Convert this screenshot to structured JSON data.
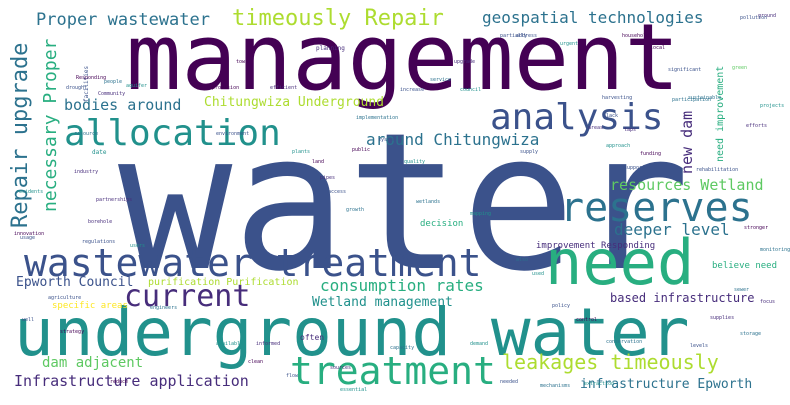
{
  "palette": {
    "dark_purple": "#440154",
    "indigo": "#472d7b",
    "slate_blue": "#3b528b",
    "steel": "#2c728e",
    "teal": "#21918c",
    "sea_green": "#28ae80",
    "green": "#5ec962",
    "lime": "#addc30",
    "yellow": "#fde725"
  },
  "words": [
    {
      "id": "management",
      "text": "management"
    },
    {
      "id": "water",
      "text": "water"
    },
    {
      "id": "underground-water",
      "text": "underground water"
    },
    {
      "id": "wastewater-treatment",
      "text": "wastewater treatment"
    },
    {
      "id": "need",
      "text": "need"
    },
    {
      "id": "treatment",
      "text": "treatment"
    },
    {
      "id": "allocation",
      "text": "allocation"
    },
    {
      "id": "analysis",
      "text": "analysis"
    },
    {
      "id": "reserves",
      "text": "reserves"
    },
    {
      "id": "current",
      "text": "current"
    },
    {
      "id": "timeously-repair",
      "text": "timeously Repair"
    },
    {
      "id": "proper-wastewater",
      "text": "Proper wastewater"
    },
    {
      "id": "geospatial-technologies",
      "text": "geospatial technologies"
    },
    {
      "id": "repair-upgrade",
      "text": "Repair upgrade"
    },
    {
      "id": "necessary-proper",
      "text": "necessary Proper"
    },
    {
      "id": "bodies-around",
      "text": "bodies around"
    },
    {
      "id": "chitungwiza-underground",
      "text": "Chitungwiza Underground"
    },
    {
      "id": "around-chitungwiza",
      "text": "around Chitungwiza"
    },
    {
      "id": "new-dam",
      "text": "new dam"
    },
    {
      "id": "need-improvement",
      "text": "need improvement"
    },
    {
      "id": "resources-wetland",
      "text": "resources Wetland"
    },
    {
      "id": "deeper-level",
      "text": "deeper level"
    },
    {
      "id": "consumption-rates",
      "text": "consumption rates"
    },
    {
      "id": "epworth-council",
      "text": "Epworth Council"
    },
    {
      "id": "purification-purification",
      "text": "purification Purification"
    },
    {
      "id": "wetland-management",
      "text": "Wetland management"
    },
    {
      "id": "based-infrastructure",
      "text": "based infrastructure"
    },
    {
      "id": "leakages-timeously",
      "text": "leakages timeously"
    },
    {
      "id": "dam-adjacent",
      "text": "dam adjacent"
    },
    {
      "id": "infrastructure-application",
      "text": "Infrastructure application"
    },
    {
      "id": "infrastructure-epworth",
      "text": "infrastructure Epworth"
    },
    {
      "id": "improvement-responding",
      "text": "improvement Responding"
    },
    {
      "id": "believe-need",
      "text": "believe need"
    },
    {
      "id": "specific-areas",
      "text": "specific areas"
    },
    {
      "id": "decision",
      "text": "decision"
    },
    {
      "id": "often",
      "text": "often"
    },
    {
      "id": "facilities",
      "text": "facilities"
    },
    {
      "id": "planning",
      "text": "planning"
    },
    {
      "id": "date",
      "text": "date"
    },
    {
      "id": "implementation",
      "text": "implementation"
    },
    {
      "id": "regulations",
      "text": "regulations"
    },
    {
      "id": "mechanisms",
      "text": "mechanisms"
    },
    {
      "id": "essential",
      "text": "essential"
    },
    {
      "id": "needed",
      "text": "needed"
    },
    {
      "id": "community",
      "text": "Community"
    },
    {
      "id": "partially",
      "text": "partially"
    },
    {
      "id": "households",
      "text": "households"
    },
    {
      "id": "significant",
      "text": "significant"
    },
    {
      "id": "participation",
      "text": "participation"
    },
    {
      "id": "projects",
      "text": "projects"
    },
    {
      "id": "efforts",
      "text": "efforts"
    },
    {
      "id": "rehabilitation",
      "text": "rehabilitation"
    },
    {
      "id": "stronger",
      "text": "stronger"
    },
    {
      "id": "informed",
      "text": "informed"
    },
    {
      "id": "sustainable",
      "text": "sustainable"
    },
    {
      "id": "system",
      "text": "system"
    },
    {
      "id": "quality",
      "text": "quality"
    },
    {
      "id": "public",
      "text": "public"
    },
    {
      "id": "supply",
      "text": "supply"
    },
    {
      "id": "industry",
      "text": "industry"
    },
    {
      "id": "growth",
      "text": "growth"
    },
    {
      "id": "address",
      "text": "address"
    },
    {
      "id": "urgent",
      "text": "urgent"
    },
    {
      "id": "local",
      "text": "local"
    },
    {
      "id": "ground",
      "text": "ground"
    },
    {
      "id": "green",
      "text": "green"
    },
    {
      "id": "pollution",
      "text": "pollution"
    },
    {
      "id": "monitoring",
      "text": "monitoring"
    },
    {
      "id": "responding",
      "text": "Responding"
    },
    {
      "id": "drought",
      "text": "drought"
    },
    {
      "id": "residents",
      "text": "residents"
    },
    {
      "id": "borehole",
      "text": "borehole"
    },
    {
      "id": "usage",
      "text": "usage"
    },
    {
      "id": "engineers",
      "text": "engineers"
    },
    {
      "id": "available",
      "text": "available"
    },
    {
      "id": "clean",
      "text": "clean"
    },
    {
      "id": "flow",
      "text": "flow"
    },
    {
      "id": "sources",
      "text": "sources"
    },
    {
      "id": "capacity",
      "text": "capacity"
    },
    {
      "id": "demand",
      "text": "demand"
    },
    {
      "id": "policy",
      "text": "policy"
    },
    {
      "id": "control",
      "text": "control"
    },
    {
      "id": "supplies",
      "text": "supplies"
    },
    {
      "id": "storage",
      "text": "storage"
    },
    {
      "id": "levels",
      "text": "levels"
    },
    {
      "id": "approach",
      "text": "approach"
    },
    {
      "id": "funding",
      "text": "funding"
    },
    {
      "id": "support",
      "text": "support"
    },
    {
      "id": "areas",
      "text": "areas"
    },
    {
      "id": "service",
      "text": "service"
    },
    {
      "id": "council",
      "text": "council"
    },
    {
      "id": "increase",
      "text": "increase"
    },
    {
      "id": "provision",
      "text": "provision"
    },
    {
      "id": "efficient",
      "text": "efficient"
    },
    {
      "id": "people",
      "text": "people"
    },
    {
      "id": "environment",
      "text": "environment"
    },
    {
      "id": "plants",
      "text": "plants"
    },
    {
      "id": "land",
      "text": "land"
    },
    {
      "id": "pipes",
      "text": "pipes"
    },
    {
      "id": "access",
      "text": "access"
    },
    {
      "id": "wetlands",
      "text": "wetlands"
    },
    {
      "id": "mapping",
      "text": "mapping"
    },
    {
      "id": "innovation",
      "text": "innovation"
    },
    {
      "id": "agriculture",
      "text": "agriculture"
    },
    {
      "id": "partnerships",
      "text": "partnerships"
    },
    {
      "id": "resource",
      "text": "resource"
    },
    {
      "id": "aquifer",
      "text": "aquifer"
    },
    {
      "id": "town",
      "text": "town"
    },
    {
      "id": "harvesting",
      "text": "harvesting"
    },
    {
      "id": "upgrade",
      "text": "upgrade"
    },
    {
      "id": "conservation",
      "text": "conservation"
    },
    {
      "id": "users",
      "text": "users"
    },
    {
      "id": "reduce",
      "text": "reduce"
    },
    {
      "id": "lack",
      "text": "lack"
    },
    {
      "id": "taps",
      "text": "taps"
    },
    {
      "id": "also",
      "text": "also"
    },
    {
      "id": "used",
      "text": "used"
    },
    {
      "id": "strategy",
      "text": "strategy"
    },
    {
      "id": "well",
      "text": "well"
    },
    {
      "id": "focus",
      "text": "focus"
    },
    {
      "id": "sewer",
      "text": "sewer"
    },
    {
      "id": "extraction",
      "text": "extraction"
    }
  ]
}
